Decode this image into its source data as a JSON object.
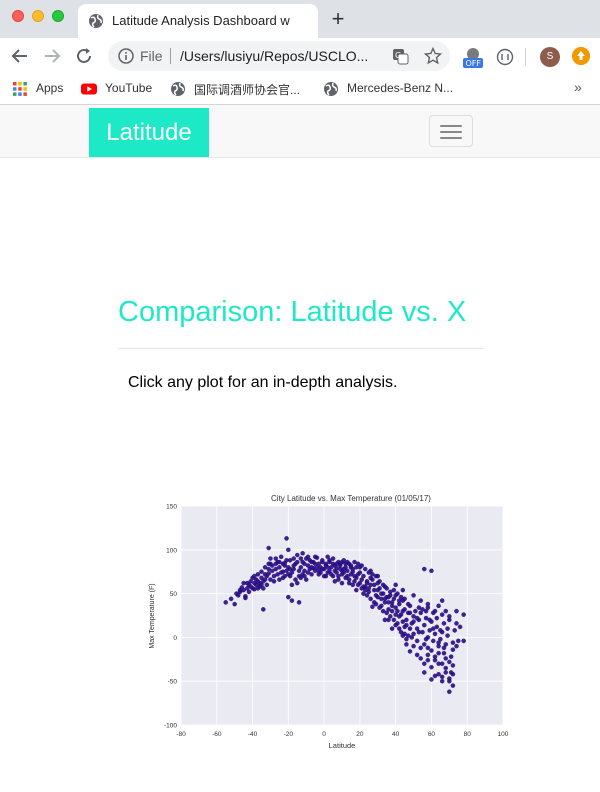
{
  "browser": {
    "tab_title": "Latitude Analysis Dashboard w",
    "new_tab": "+",
    "omnibox_scheme": "File",
    "omnibox_url": "/Users/lusiyu/Repos/USCLO...",
    "extension_badge": "OFF",
    "avatar_letter": "S",
    "bookmarks": [
      {
        "label": "Apps",
        "icon": "apps-grid-icon"
      },
      {
        "label": "YouTube",
        "icon": "youtube-icon"
      },
      {
        "label": "国际调酒师协会官...",
        "icon": "globe-icon"
      },
      {
        "label": "Mercedes-Benz N...",
        "icon": "globe-icon"
      }
    ],
    "bookmarks_more": "»"
  },
  "navbar": {
    "brand": "Latitude",
    "brand_color": "#1de9c6"
  },
  "main": {
    "heading": "Comparison: Latitude vs. X",
    "instruction": "Click any plot for an in-depth analysis."
  },
  "chart_data": {
    "type": "scatter",
    "title": "City Latitude vs. Max Temperature (01/05/17)",
    "xlabel": "Latitude",
    "ylabel": "Max Temperature (F)",
    "xlim": [
      -80,
      100
    ],
    "ylim": [
      -100,
      150
    ],
    "xticks": [
      -80,
      -60,
      -40,
      -20,
      0,
      20,
      40,
      60,
      80,
      100
    ],
    "yticks": [
      -100,
      -50,
      0,
      50,
      100,
      150
    ],
    "grid": true,
    "marker_color": "#2a0c8c",
    "background": "#eaeaf2",
    "points": [
      [
        -55,
        40
      ],
      [
        -52,
        44
      ],
      [
        -50,
        38
      ],
      [
        -47,
        52
      ],
      [
        -46,
        57
      ],
      [
        -44,
        47
      ],
      [
        -43,
        62
      ],
      [
        -42,
        60
      ],
      [
        -40,
        68
      ],
      [
        -39,
        55
      ],
      [
        -38,
        66
      ],
      [
        -37,
        72
      ],
      [
        -36,
        58
      ],
      [
        -35,
        75
      ],
      [
        -34,
        64
      ],
      [
        -33,
        80
      ],
      [
        -32,
        60
      ],
      [
        -31,
        73
      ],
      [
        -30,
        84
      ],
      [
        -30,
        90
      ],
      [
        -31,
        102
      ],
      [
        -28,
        70
      ],
      [
        -27,
        78
      ],
      [
        -26,
        86
      ],
      [
        -25,
        66
      ],
      [
        -24,
        92
      ],
      [
        -23,
        75
      ],
      [
        -22,
        82
      ],
      [
        -21,
        113
      ],
      [
        -20,
        100
      ],
      [
        -20,
        72
      ],
      [
        -19,
        88
      ],
      [
        -18,
        60
      ],
      [
        -17,
        78
      ],
      [
        -16,
        84
      ],
      [
        -15,
        94
      ],
      [
        -14,
        70
      ],
      [
        -13,
        80
      ],
      [
        -12,
        86
      ],
      [
        -11,
        76
      ],
      [
        -10,
        90
      ],
      [
        -9,
        82
      ],
      [
        -8,
        88
      ],
      [
        -7,
        72
      ],
      [
        -6,
        79
      ],
      [
        -5,
        84
      ],
      [
        -4,
        91
      ],
      [
        -3,
        76
      ],
      [
        -2,
        80
      ],
      [
        -1,
        86
      ],
      [
        0,
        78
      ],
      [
        1,
        82
      ],
      [
        2,
        74
      ],
      [
        3,
        88
      ],
      [
        4,
        80
      ],
      [
        5,
        84
      ],
      [
        6,
        76
      ],
      [
        7,
        79
      ],
      [
        8,
        86
      ],
      [
        9,
        82
      ],
      [
        10,
        72
      ],
      [
        11,
        78
      ],
      [
        12,
        84
      ],
      [
        13,
        70
      ],
      [
        14,
        66
      ],
      [
        15,
        80
      ],
      [
        16,
        75
      ],
      [
        17,
        64
      ],
      [
        18,
        68
      ],
      [
        19,
        72
      ],
      [
        20,
        62
      ],
      [
        21,
        56
      ],
      [
        22,
        70
      ],
      [
        23,
        58
      ],
      [
        24,
        64
      ],
      [
        25,
        52
      ],
      [
        26,
        60
      ],
      [
        27,
        66
      ],
      [
        28,
        54
      ],
      [
        29,
        48
      ],
      [
        30,
        62
      ],
      [
        31,
        56
      ],
      [
        32,
        44
      ],
      [
        33,
        50
      ],
      [
        34,
        58
      ],
      [
        35,
        46
      ],
      [
        36,
        40
      ],
      [
        37,
        52
      ],
      [
        38,
        36
      ],
      [
        39,
        44
      ],
      [
        40,
        48
      ],
      [
        41,
        30
      ],
      [
        42,
        38
      ],
      [
        43,
        26
      ],
      [
        44,
        42
      ],
      [
        45,
        32
      ],
      [
        46,
        20
      ],
      [
        47,
        28
      ],
      [
        48,
        36
      ],
      [
        49,
        16
      ],
      [
        50,
        24
      ],
      [
        51,
        30
      ],
      [
        52,
        10
      ],
      [
        53,
        20
      ],
      [
        54,
        28
      ],
      [
        55,
        6
      ],
      [
        56,
        14
      ],
      [
        57,
        22
      ],
      [
        58,
        0
      ],
      [
        59,
        8
      ],
      [
        60,
        18
      ],
      [
        61,
        -4
      ],
      [
        62,
        4
      ],
      [
        63,
        12
      ],
      [
        64,
        -10
      ],
      [
        65,
        -2
      ],
      [
        66,
        6
      ],
      [
        67,
        -18
      ],
      [
        68,
        -8
      ],
      [
        69,
        2
      ],
      [
        70,
        -28
      ],
      [
        71,
        -40
      ],
      [
        72,
        -55
      ],
      [
        70,
        -47
      ],
      [
        68,
        -35
      ],
      [
        66,
        -45
      ],
      [
        64,
        -30
      ],
      [
        62,
        -22
      ],
      [
        60,
        -15
      ],
      [
        58,
        -26
      ],
      [
        56,
        -8
      ],
      [
        54,
        -12
      ],
      [
        52,
        -4
      ],
      [
        50,
        4
      ],
      [
        48,
        10
      ],
      [
        46,
        14
      ],
      [
        44,
        18
      ],
      [
        42,
        24
      ],
      [
        40,
        34
      ],
      [
        38,
        40
      ],
      [
        36,
        46
      ],
      [
        34,
        40
      ],
      [
        32,
        50
      ],
      [
        30,
        54
      ],
      [
        28,
        60
      ],
      [
        26,
        68
      ],
      [
        24,
        62
      ],
      [
        22,
        58
      ],
      [
        20,
        74
      ],
      [
        18,
        80
      ],
      [
        16,
        78
      ],
      [
        14,
        84
      ],
      [
        12,
        80
      ],
      [
        10,
        76
      ],
      [
        8,
        70
      ],
      [
        6,
        82
      ],
      [
        4,
        72
      ],
      [
        2,
        80
      ],
      [
        0,
        70
      ],
      [
        -2,
        74
      ],
      [
        -4,
        80
      ],
      [
        -6,
        86
      ],
      [
        -8,
        78
      ],
      [
        -10,
        66
      ],
      [
        -12,
        72
      ],
      [
        -14,
        76
      ],
      [
        -16,
        66
      ],
      [
        -18,
        74
      ],
      [
        -20,
        80
      ],
      [
        -22,
        70
      ],
      [
        -24,
        74
      ],
      [
        -26,
        72
      ],
      [
        -28,
        64
      ],
      [
        -30,
        66
      ],
      [
        -32,
        70
      ],
      [
        -34,
        56
      ],
      [
        -36,
        62
      ],
      [
        -38,
        60
      ],
      [
        -40,
        56
      ],
      [
        -42,
        52
      ],
      [
        -44,
        45
      ],
      [
        -48,
        48
      ],
      [
        -34,
        32
      ],
      [
        -20,
        46
      ],
      [
        -18,
        42
      ],
      [
        -14,
        40
      ],
      [
        56,
        78
      ],
      [
        60,
        76
      ],
      [
        78,
        26
      ],
      [
        74,
        16
      ],
      [
        72,
        -32
      ],
      [
        70,
        -62
      ],
      [
        66,
        -50
      ],
      [
        64,
        -42
      ],
      [
        62,
        -26
      ],
      [
        58,
        -12
      ],
      [
        54,
        -24
      ],
      [
        50,
        -10
      ],
      [
        46,
        -8
      ],
      [
        45,
        4
      ],
      [
        47,
        2
      ],
      [
        52,
        22
      ],
      [
        55,
        32
      ],
      [
        58,
        38
      ],
      [
        61,
        28
      ],
      [
        64,
        36
      ],
      [
        66,
        42
      ],
      [
        68,
        30
      ],
      [
        70,
        24
      ],
      [
        72,
        -14
      ],
      [
        73,
        8
      ],
      [
        75,
        -4
      ],
      [
        76,
        12
      ],
      [
        78,
        -4
      ],
      [
        48,
        28
      ],
      [
        44,
        30
      ],
      [
        40,
        26
      ],
      [
        38,
        30
      ],
      [
        36,
        32
      ],
      [
        34,
        20
      ],
      [
        32,
        36
      ],
      [
        28,
        40
      ],
      [
        26,
        44
      ],
      [
        24,
        48
      ],
      [
        22,
        50
      ],
      [
        18,
        54
      ],
      [
        16,
        60
      ],
      [
        14,
        62
      ],
      [
        12,
        68
      ],
      [
        10,
        62
      ],
      [
        8,
        66
      ],
      [
        6,
        64
      ],
      [
        30,
        46
      ],
      [
        27,
        35
      ],
      [
        34,
        44
      ],
      [
        42,
        42
      ],
      [
        53,
        34
      ],
      [
        57,
        30
      ],
      [
        59,
        20
      ],
      [
        63,
        22
      ],
      [
        67,
        16
      ],
      [
        69,
        10
      ],
      [
        71,
        -22
      ],
      [
        67,
        -12
      ],
      [
        65,
        8
      ],
      [
        61,
        10
      ],
      [
        57,
        -2
      ],
      [
        53,
        6
      ],
      [
        49,
        0
      ],
      [
        45,
        12
      ],
      [
        43,
        6
      ],
      [
        41,
        16
      ],
      [
        39,
        20
      ],
      [
        37,
        24
      ],
      [
        35,
        28
      ],
      [
        33,
        30
      ],
      [
        31,
        34
      ],
      [
        29,
        38
      ],
      [
        25,
        56
      ],
      [
        23,
        54
      ],
      [
        21,
        66
      ],
      [
        19,
        60
      ],
      [
        17,
        70
      ],
      [
        15,
        72
      ],
      [
        13,
        76
      ],
      [
        11,
        74
      ],
      [
        9,
        78
      ],
      [
        7,
        84
      ],
      [
        5,
        90
      ],
      [
        3,
        86
      ],
      [
        1,
        84
      ],
      [
        -1,
        78
      ],
      [
        -3,
        84
      ],
      [
        -5,
        76
      ],
      [
        -7,
        80
      ],
      [
        -9,
        74
      ],
      [
        -11,
        84
      ],
      [
        -13,
        90
      ],
      [
        -15,
        86
      ],
      [
        -17,
        82
      ],
      [
        -19,
        70
      ],
      [
        -21,
        76
      ],
      [
        -23,
        84
      ],
      [
        -25,
        80
      ],
      [
        -27,
        84
      ],
      [
        -29,
        76
      ],
      [
        -31,
        78
      ],
      [
        -33,
        72
      ],
      [
        -35,
        68
      ],
      [
        -37,
        64
      ],
      [
        -39,
        62
      ],
      [
        -41,
        58
      ],
      [
        -45,
        54
      ],
      [
        -22,
        85
      ],
      [
        -12,
        96
      ],
      [
        2,
        92
      ],
      [
        10,
        86
      ],
      [
        20,
        80
      ],
      [
        26,
        76
      ],
      [
        30,
        70
      ],
      [
        40,
        60
      ],
      [
        44,
        54
      ],
      [
        50,
        48
      ],
      [
        54,
        42
      ],
      [
        58,
        34
      ],
      [
        62,
        30
      ],
      [
        66,
        26
      ],
      [
        70,
        20
      ],
      [
        74,
        -10
      ],
      [
        72,
        -42
      ],
      [
        68,
        -24
      ],
      [
        64,
        -18
      ],
      [
        60,
        -34
      ],
      [
        56,
        -40
      ],
      [
        52,
        -20
      ],
      [
        48,
        -16
      ],
      [
        46,
        -2
      ],
      [
        44,
        2
      ],
      [
        42,
        10
      ],
      [
        40,
        14
      ],
      [
        38,
        10
      ],
      [
        36,
        20
      ],
      [
        62,
        -44
      ],
      [
        60,
        -48
      ],
      [
        58,
        -20
      ],
      [
        56,
        -30
      ],
      [
        64,
        -6
      ],
      [
        66,
        -30
      ],
      [
        68,
        -40
      ],
      [
        70,
        -50
      ],
      [
        72,
        -6
      ],
      [
        74,
        30
      ],
      [
        50,
        18
      ],
      [
        47,
        38
      ],
      [
        45,
        44
      ],
      [
        43,
        46
      ],
      [
        41,
        50
      ],
      [
        39,
        54
      ],
      [
        37,
        48
      ],
      [
        35,
        56
      ],
      [
        33,
        60
      ],
      [
        31,
        64
      ],
      [
        29,
        70
      ],
      [
        27,
        72
      ],
      [
        25,
        74
      ],
      [
        23,
        78
      ],
      [
        21,
        82
      ],
      [
        19,
        84
      ],
      [
        17,
        86
      ],
      [
        15,
        82
      ],
      [
        13,
        86
      ],
      [
        11,
        88
      ],
      [
        9,
        84
      ],
      [
        7,
        74
      ],
      [
        5,
        70
      ],
      [
        3,
        76
      ],
      [
        1,
        70
      ],
      [
        -1,
        88
      ],
      [
        -3,
        72
      ],
      [
        -5,
        92
      ],
      [
        -7,
        86
      ],
      [
        -9,
        92
      ],
      [
        -11,
        70
      ],
      [
        -13,
        68
      ],
      [
        -15,
        62
      ],
      [
        -17,
        90
      ],
      [
        -19,
        78
      ],
      [
        -21,
        88
      ],
      [
        -23,
        68
      ],
      [
        -25,
        86
      ],
      [
        -27,
        90
      ],
      [
        -29,
        82
      ],
      [
        -31,
        84
      ],
      [
        -33,
        66
      ],
      [
        -35,
        60
      ],
      [
        -37,
        56
      ],
      [
        -39,
        70
      ],
      [
        -41,
        64
      ],
      [
        -43,
        56
      ],
      [
        -45,
        62
      ],
      [
        -47,
        54
      ],
      [
        -49,
        50
      ]
    ]
  }
}
